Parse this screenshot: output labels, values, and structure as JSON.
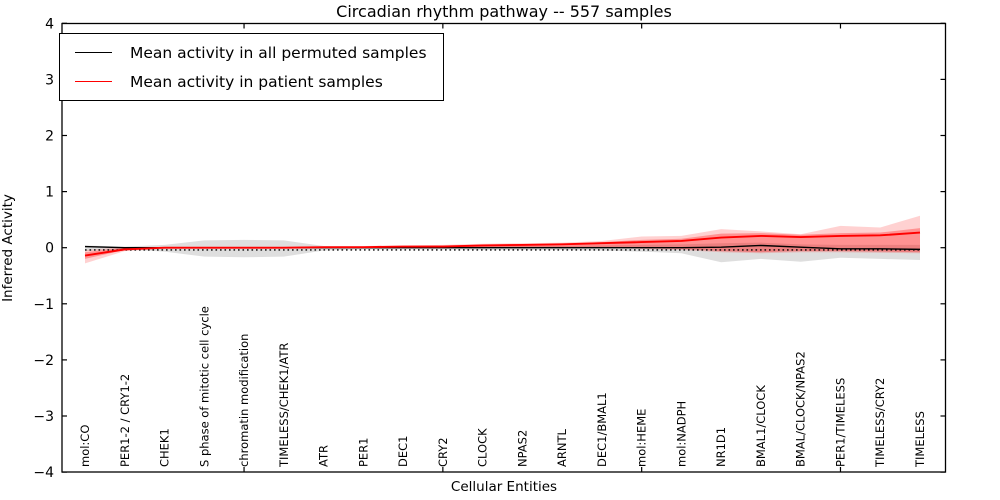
{
  "title": "Circadian rhythm pathway -- 557 samples",
  "axes": {
    "xlabel": "Cellular Entities",
    "ylabel": "Inferred Activity",
    "ylim": [
      -4,
      4
    ],
    "y_ticks": [
      4,
      3,
      2,
      1,
      0,
      -1,
      -2,
      -3,
      -4
    ],
    "grid": false,
    "tick_direction": "in",
    "x_major_tick_indices": [
      4,
      9,
      14,
      19
    ]
  },
  "legend": {
    "position": "upper left",
    "items": [
      {
        "label": "Mean activity in all permuted samples",
        "color": "#000000"
      },
      {
        "label": "Mean activity in patient samples",
        "color": "#ff0000"
      }
    ]
  },
  "colors": {
    "frame": "#000000",
    "permuted_line": "#000000",
    "patient_line": "#ff0000",
    "permuted_band": "rgba(0,0,0,0.13)",
    "patient_band_outer": "rgba(255,0,0,0.18)",
    "patient_band_inner": "rgba(255,0,0,0.30)",
    "zero_line": "#000000"
  },
  "chart_data": {
    "type": "line",
    "title": "Circadian rhythm pathway -- 557 samples",
    "xlabel": "Cellular Entities",
    "ylabel": "Inferred Activity",
    "ylim": [
      -4,
      4
    ],
    "legend_position": "upper left",
    "grid": false,
    "categories": [
      "mol:CO",
      "PER1-2 / CRY1-2",
      "CHEK1",
      "S phase of mitotic cell cycle",
      "chromatin modification",
      "TIMELESS/CHEK1/ATR",
      "ATR",
      "PER1",
      "DEC1",
      "CRY2",
      "CLOCK",
      "NPAS2",
      "ARNTL",
      "DEC1/BMAL1",
      "mol:HEME",
      "mol:NADPH",
      "NR1D1",
      "BMAL1/CLOCK",
      "BMAL/CLOCK/NPAS2",
      "PER1/TIMELESS",
      "TIMELESS/CRY2",
      "TIMELESS"
    ],
    "series": [
      {
        "name": "Mean activity in all permuted samples",
        "color": "#000000",
        "style": "solid",
        "values": [
          0.02,
          0.0,
          0.0,
          0.0,
          0.0,
          0.0,
          0.0,
          0.0,
          0.0,
          0.0,
          0.0,
          0.0,
          0.0,
          0.0,
          0.0,
          0.0,
          0.01,
          0.04,
          0.01,
          -0.02,
          -0.02,
          -0.03
        ]
      },
      {
        "name": "Mean activity in patient samples",
        "color": "#ff0000",
        "style": "solid",
        "values": [
          -0.14,
          -0.03,
          0.0,
          0.0,
          0.0,
          0.0,
          0.01,
          0.01,
          0.02,
          0.02,
          0.04,
          0.05,
          0.06,
          0.08,
          0.1,
          0.12,
          0.18,
          0.21,
          0.19,
          0.21,
          0.22,
          0.27
        ]
      }
    ],
    "bands": [
      {
        "name": "permuted-range",
        "fill": "rgba(0,0,0,0.13)",
        "upper": [
          0.04,
          0.02,
          0.05,
          0.13,
          0.14,
          0.13,
          0.03,
          0.02,
          0.02,
          0.02,
          0.03,
          0.03,
          0.03,
          0.04,
          0.05,
          0.06,
          0.08,
          0.09,
          0.06,
          0.05,
          0.05,
          0.05
        ],
        "lower": [
          -0.06,
          -0.03,
          -0.07,
          -0.16,
          -0.17,
          -0.16,
          -0.05,
          -0.03,
          -0.03,
          -0.03,
          -0.04,
          -0.04,
          -0.04,
          -0.05,
          -0.07,
          -0.1,
          -0.26,
          -0.2,
          -0.25,
          -0.18,
          -0.2,
          -0.22
        ]
      },
      {
        "name": "patient-range-outer",
        "fill": "rgba(255,0,0,0.18)",
        "upper": [
          -0.04,
          0.01,
          0.01,
          0.01,
          0.01,
          0.01,
          0.02,
          0.03,
          0.04,
          0.05,
          0.07,
          0.08,
          0.09,
          0.12,
          0.2,
          0.21,
          0.33,
          0.29,
          0.24,
          0.39,
          0.36,
          0.57
        ],
        "lower": [
          -0.28,
          -0.06,
          -0.02,
          -0.02,
          -0.02,
          -0.02,
          -0.01,
          -0.01,
          -0.01,
          -0.01,
          0.0,
          0.0,
          0.0,
          0.0,
          -0.02,
          -0.04,
          -0.08,
          -0.1,
          -0.08,
          -0.08,
          -0.09,
          -0.1
        ]
      },
      {
        "name": "patient-range-inner",
        "fill": "rgba(255,0,0,0.30)",
        "upper": [
          -0.08,
          0.0,
          0.0,
          0.0,
          0.0,
          0.0,
          0.01,
          0.02,
          0.03,
          0.04,
          0.05,
          0.06,
          0.07,
          0.1,
          0.14,
          0.16,
          0.25,
          0.26,
          0.23,
          0.26,
          0.27,
          0.35
        ],
        "lower": [
          -0.2,
          -0.04,
          -0.01,
          -0.01,
          -0.01,
          -0.01,
          -0.01,
          0.0,
          0.0,
          0.0,
          0.0,
          0.0,
          0.0,
          0.0,
          -0.01,
          -0.02,
          -0.06,
          -0.08,
          -0.06,
          -0.06,
          -0.07,
          -0.08
        ]
      }
    ],
    "zero_reference_line": {
      "value": -0.04,
      "style": "dotted",
      "color": "#000000"
    }
  }
}
